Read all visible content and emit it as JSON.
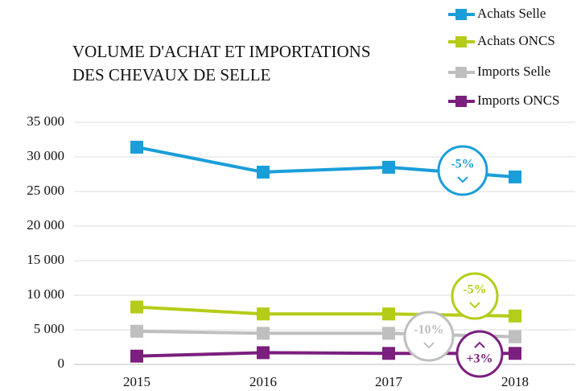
{
  "chart_data": {
    "type": "line",
    "title": [
      "VOLUME D'ACHAT ET IMPORTATIONS",
      "DES CHEVAUX DE SELLE"
    ],
    "categories": [
      "2015",
      "2016",
      "2017",
      "2018"
    ],
    "series": [
      {
        "name": "Achats Selle",
        "color": "#1a9ed9",
        "values": [
          31400,
          27800,
          28500,
          27100
        ]
      },
      {
        "name": "Achats ONCS",
        "color": "#b5cc18",
        "values": [
          8300,
          7300,
          7300,
          7000
        ]
      },
      {
        "name": "Imports Selle",
        "color": "#bfbfbf",
        "values": [
          4800,
          4500,
          4500,
          4000
        ]
      },
      {
        "name": "Imports ONCS",
        "color": "#7b1f7e",
        "values": [
          1200,
          1700,
          1600,
          1600
        ]
      }
    ],
    "ylim": [
      0,
      35000
    ],
    "yticks": [
      0,
      {
        "value": 5000,
        "label": "5 000"
      },
      {
        "value": 10000,
        "label": "10 000"
      },
      {
        "value": 15000,
        "label": "15 000"
      },
      {
        "value": 20000,
        "label": "20 000"
      },
      {
        "value": 25000,
        "label": "25 000"
      },
      {
        "value": 30000,
        "label": "30 000"
      },
      {
        "value": 35000,
        "label": "35 000"
      }
    ],
    "grid": true,
    "legend": "top-right",
    "annotations": [
      {
        "text": "-5%",
        "color": "#1a9ed9"
      },
      {
        "text": "-5%",
        "color": "#b5cc18"
      },
      {
        "text": "-10%",
        "color": "#bfbfbf"
      },
      {
        "text": "+3%",
        "color": "#7b1f7e"
      }
    ]
  }
}
